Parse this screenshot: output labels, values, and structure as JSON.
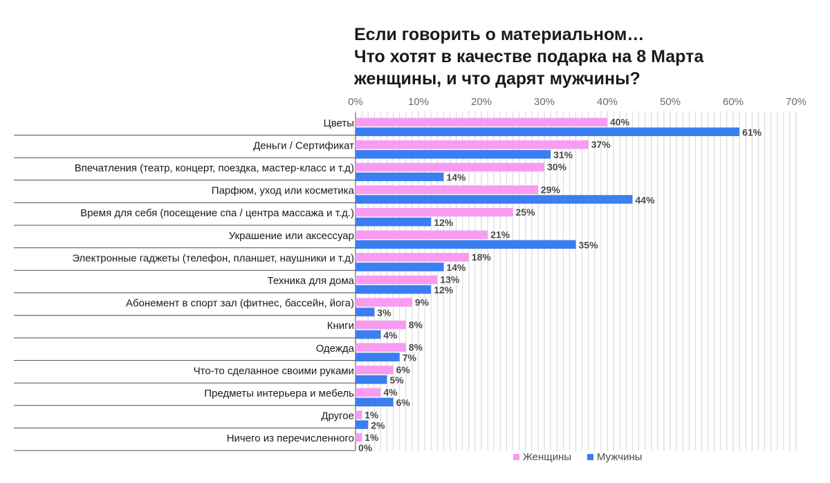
{
  "title": {
    "line1": "Если говорить о материальном…",
    "line2": "Что хотят в качестве подарка на 8 Марта",
    "line3": "женщины, и что дарят мужчины?"
  },
  "colors": {
    "women": "#f79cf2",
    "men": "#3a7ef0",
    "grid": "#d6d6d6",
    "separator": "#4d4d4d"
  },
  "chart_data": {
    "type": "bar",
    "orientation": "horizontal",
    "title": "Если говорить о материальном… Что хотят в качестве подарка на 8 Марта женщины, и что дарят мужчины?",
    "xlim": [
      0,
      70
    ],
    "xticks": [
      "0%",
      "10%",
      "20%",
      "30%",
      "40%",
      "50%",
      "60%",
      "70%"
    ],
    "categories": [
      "Цветы",
      "Деньги / Сертификат",
      "Впечатления (театр, концерт, поездка, мастер-класс и т.д)",
      "Парфюм, уход или косметика",
      "Время для себя (посещение спа / центра массажа и т.д.)",
      "Украшение или аксессуар",
      "Электронные гаджеты (телефон, планшет, наушники и т.д)",
      "Техника для дома",
      "Абонемент в спорт зал (фитнес, бассейн, йога)",
      "Книги",
      "Одежда",
      "Что-то сделанное своими руками",
      "Предметы интерьера и мебель",
      "Другое",
      "Ничего из перечисленного"
    ],
    "series": [
      {
        "name": "Женщины",
        "values": [
          40,
          37,
          30,
          29,
          25,
          21,
          18,
          13,
          9,
          8,
          8,
          6,
          4,
          1,
          1
        ]
      },
      {
        "name": "Мужчины",
        "values": [
          61,
          31,
          14,
          44,
          12,
          35,
          14,
          12,
          3,
          4,
          7,
          5,
          6,
          2,
          0
        ]
      }
    ],
    "value_suffix": "%",
    "legend_position": "bottom-right"
  }
}
